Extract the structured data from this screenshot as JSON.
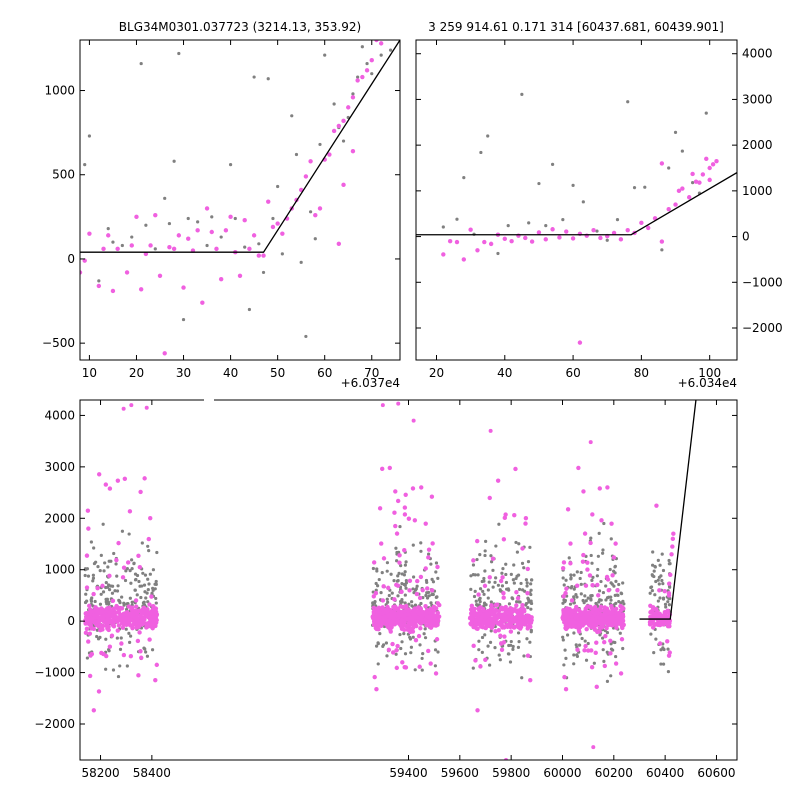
{
  "colors": {
    "foreground": "#6b6b6b",
    "background_points": "#808080",
    "model_points": "#f060e0",
    "model_line": "#000000"
  },
  "chart_data": [
    {
      "type": "scatter",
      "title": "BLG34M0301.037723 (3214.13, 353.92)",
      "x_offset_label": "+6.037e4",
      "xlim": [
        8,
        76
      ],
      "ylim": [
        -600,
        1300
      ],
      "xticks": [
        10,
        20,
        30,
        40,
        50,
        60,
        70
      ],
      "yticks": [
        -500,
        0,
        500,
        1000
      ],
      "series": [
        {
          "color": "background",
          "points": [
            [
              9,
              560
            ],
            [
              10,
              730
            ],
            [
              12,
              -130
            ],
            [
              14,
              180
            ],
            [
              15,
              100
            ],
            [
              17,
              80
            ],
            [
              19,
              130
            ],
            [
              21,
              1160
            ],
            [
              22,
              200
            ],
            [
              24,
              60
            ],
            [
              26,
              360
            ],
            [
              27,
              210
            ],
            [
              28,
              580
            ],
            [
              29,
              1220
            ],
            [
              30,
              -360
            ],
            [
              31,
              240
            ],
            [
              33,
              220
            ],
            [
              35,
              80
            ],
            [
              36,
              250
            ],
            [
              38,
              130
            ],
            [
              40,
              560
            ],
            [
              41,
              240
            ],
            [
              43,
              70
            ],
            [
              44,
              -300
            ],
            [
              45,
              1080
            ],
            [
              46,
              90
            ],
            [
              47,
              -80
            ],
            [
              48,
              1070
            ],
            [
              49,
              240
            ],
            [
              50,
              430
            ],
            [
              51,
              30
            ],
            [
              53,
              850
            ],
            [
              54,
              620
            ],
            [
              55,
              -20
            ],
            [
              56,
              -460
            ],
            [
              57,
              280
            ],
            [
              58,
              120
            ],
            [
              59,
              680
            ],
            [
              60,
              1210
            ],
            [
              62,
              920
            ],
            [
              63,
              780
            ],
            [
              64,
              700
            ],
            [
              65,
              840
            ],
            [
              66,
              980
            ],
            [
              67,
              1080
            ],
            [
              68,
              1260
            ],
            [
              69,
              1160
            ],
            [
              70,
              1100
            ],
            [
              72,
              1210
            ],
            [
              74,
              1240
            ]
          ]
        },
        {
          "color": "model",
          "points": [
            [
              8,
              -80
            ],
            [
              9,
              -10
            ],
            [
              10,
              150
            ],
            [
              12,
              -160
            ],
            [
              13,
              60
            ],
            [
              14,
              140
            ],
            [
              15,
              -190
            ],
            [
              16,
              60
            ],
            [
              18,
              -80
            ],
            [
              19,
              80
            ],
            [
              20,
              250
            ],
            [
              21,
              -180
            ],
            [
              22,
              30
            ],
            [
              23,
              80
            ],
            [
              24,
              260
            ],
            [
              25,
              -100
            ],
            [
              26,
              -560
            ],
            [
              27,
              70
            ],
            [
              28,
              60
            ],
            [
              29,
              140
            ],
            [
              30,
              -170
            ],
            [
              31,
              120
            ],
            [
              32,
              50
            ],
            [
              33,
              170
            ],
            [
              34,
              -260
            ],
            [
              35,
              300
            ],
            [
              36,
              160
            ],
            [
              37,
              60
            ],
            [
              38,
              -120
            ],
            [
              39,
              170
            ],
            [
              40,
              250
            ],
            [
              41,
              40
            ],
            [
              42,
              -100
            ],
            [
              43,
              230
            ],
            [
              44,
              60
            ],
            [
              45,
              140
            ],
            [
              46,
              20
            ],
            [
              47,
              20
            ],
            [
              48,
              340
            ],
            [
              49,
              190
            ],
            [
              50,
              210
            ],
            [
              51,
              150
            ],
            [
              52,
              240
            ],
            [
              53,
              300
            ],
            [
              54,
              350
            ],
            [
              55,
              410
            ],
            [
              56,
              490
            ],
            [
              57,
              580
            ],
            [
              58,
              260
            ],
            [
              59,
              300
            ],
            [
              60,
              590
            ],
            [
              61,
              620
            ],
            [
              62,
              760
            ],
            [
              63,
              790
            ],
            [
              64,
              820
            ],
            [
              65,
              900
            ],
            [
              66,
              960
            ],
            [
              67,
              1060
            ],
            [
              68,
              1080
            ],
            [
              69,
              1120
            ],
            [
              70,
              1180
            ],
            [
              71,
              1300
            ],
            [
              72,
              1280
            ],
            [
              64,
              440
            ],
            [
              63,
              90
            ],
            [
              66,
              640
            ]
          ]
        }
      ],
      "model_line": [
        [
          8,
          40
        ],
        [
          47,
          40
        ],
        [
          76,
          1300
        ]
      ]
    },
    {
      "type": "scatter",
      "title": "3 259 914.61 0.171 314 [60437.681, 60439.901]",
      "x_offset_label": "+6.034e4",
      "xlim": [
        14,
        108
      ],
      "ylim": [
        -2700,
        4300
      ],
      "xticks": [
        20,
        40,
        60,
        80,
        100
      ],
      "yticks": [
        -2000,
        -1000,
        0,
        1000,
        2000,
        3000,
        4000
      ],
      "series": [
        {
          "color": "background",
          "points": [
            [
              22,
              210
            ],
            [
              26,
              380
            ],
            [
              28,
              1290
            ],
            [
              31,
              50
            ],
            [
              33,
              1840
            ],
            [
              35,
              2200
            ],
            [
              38,
              -370
            ],
            [
              41,
              240
            ],
            [
              45,
              3110
            ],
            [
              47,
              300
            ],
            [
              50,
              1160
            ],
            [
              52,
              240
            ],
            [
              54,
              1580
            ],
            [
              57,
              370
            ],
            [
              60,
              1120
            ],
            [
              63,
              760
            ],
            [
              67,
              120
            ],
            [
              70,
              -80
            ],
            [
              73,
              370
            ],
            [
              76,
              2950
            ],
            [
              78,
              1070
            ],
            [
              81,
              1080
            ],
            [
              84,
              400
            ],
            [
              86,
              -290
            ],
            [
              88,
              1500
            ],
            [
              90,
              2280
            ],
            [
              92,
              1870
            ],
            [
              95,
              1180
            ],
            [
              97,
              950
            ],
            [
              99,
              2700
            ]
          ]
        },
        {
          "color": "model",
          "points": [
            [
              22,
              -390
            ],
            [
              24,
              -100
            ],
            [
              26,
              -120
            ],
            [
              28,
              -500
            ],
            [
              30,
              150
            ],
            [
              32,
              -300
            ],
            [
              34,
              -120
            ],
            [
              36,
              -160
            ],
            [
              38,
              40
            ],
            [
              40,
              -50
            ],
            [
              42,
              -100
            ],
            [
              44,
              20
            ],
            [
              46,
              -30
            ],
            [
              48,
              -110
            ],
            [
              50,
              90
            ],
            [
              52,
              -60
            ],
            [
              54,
              160
            ],
            [
              56,
              -20
            ],
            [
              58,
              110
            ],
            [
              60,
              -40
            ],
            [
              62,
              60
            ],
            [
              62,
              -2320
            ],
            [
              64,
              20
            ],
            [
              66,
              140
            ],
            [
              68,
              -30
            ],
            [
              70,
              10
            ],
            [
              72,
              80
            ],
            [
              74,
              -60
            ],
            [
              76,
              140
            ],
            [
              78,
              80
            ],
            [
              80,
              300
            ],
            [
              82,
              190
            ],
            [
              84,
              400
            ],
            [
              86,
              -110
            ],
            [
              88,
              600
            ],
            [
              90,
              700
            ],
            [
              92,
              1050
            ],
            [
              94,
              860
            ],
            [
              96,
              1200
            ],
            [
              98,
              1360
            ],
            [
              99,
              1700
            ],
            [
              100,
              1500
            ],
            [
              101,
              1580
            ],
            [
              102,
              1650
            ],
            [
              97,
              1180
            ],
            [
              100,
              1240
            ],
            [
              86,
              1600
            ],
            [
              91,
              1000
            ],
            [
              95,
              1370
            ]
          ]
        }
      ],
      "model_line": [
        [
          14,
          40
        ],
        [
          77,
          40
        ],
        [
          108,
          1400
        ]
      ]
    },
    {
      "type": "scatter",
      "xlim": [
        58120,
        60680
      ],
      "ylim": [
        -2700,
        4300
      ],
      "xticks": [
        58200,
        58400,
        59400,
        59600,
        59800,
        60000,
        60200,
        60400,
        60600
      ],
      "yticks": [
        -2000,
        -1000,
        0,
        1000,
        2000,
        3000,
        4000
      ],
      "seasons": [
        {
          "start": 58140,
          "end": 58420,
          "bg": 230,
          "model": 430
        },
        {
          "start": 59260,
          "end": 59520,
          "bg": 210,
          "model": 470
        },
        {
          "start": 59640,
          "end": 59880,
          "bg": 190,
          "model": 380
        },
        {
          "start": 60000,
          "end": 60240,
          "bg": 210,
          "model": 450
        },
        {
          "start": 60340,
          "end": 60420,
          "bg": 70,
          "model": 90
        }
      ],
      "outliers": [
        [
          58320,
          4200
        ],
        [
          58290,
          4130
        ],
        [
          58380,
          4150
        ],
        [
          59300,
          4200
        ],
        [
          59360,
          4230
        ],
        [
          59420,
          3900
        ],
        [
          59780,
          -2700
        ],
        [
          60110,
          3480
        ],
        [
          59720,
          3700
        ],
        [
          60120,
          -2450
        ]
      ],
      "rising_points": [
        [
          60410,
          200
        ],
        [
          60415,
          500
        ],
        [
          60420,
          900
        ],
        [
          60425,
          1300
        ],
        [
          60430,
          1600
        ],
        [
          60432,
          1700
        ],
        [
          60428,
          1450
        ]
      ],
      "model_line": [
        [
          60300,
          40
        ],
        [
          60420,
          40
        ],
        [
          60520,
          4300
        ]
      ]
    }
  ]
}
